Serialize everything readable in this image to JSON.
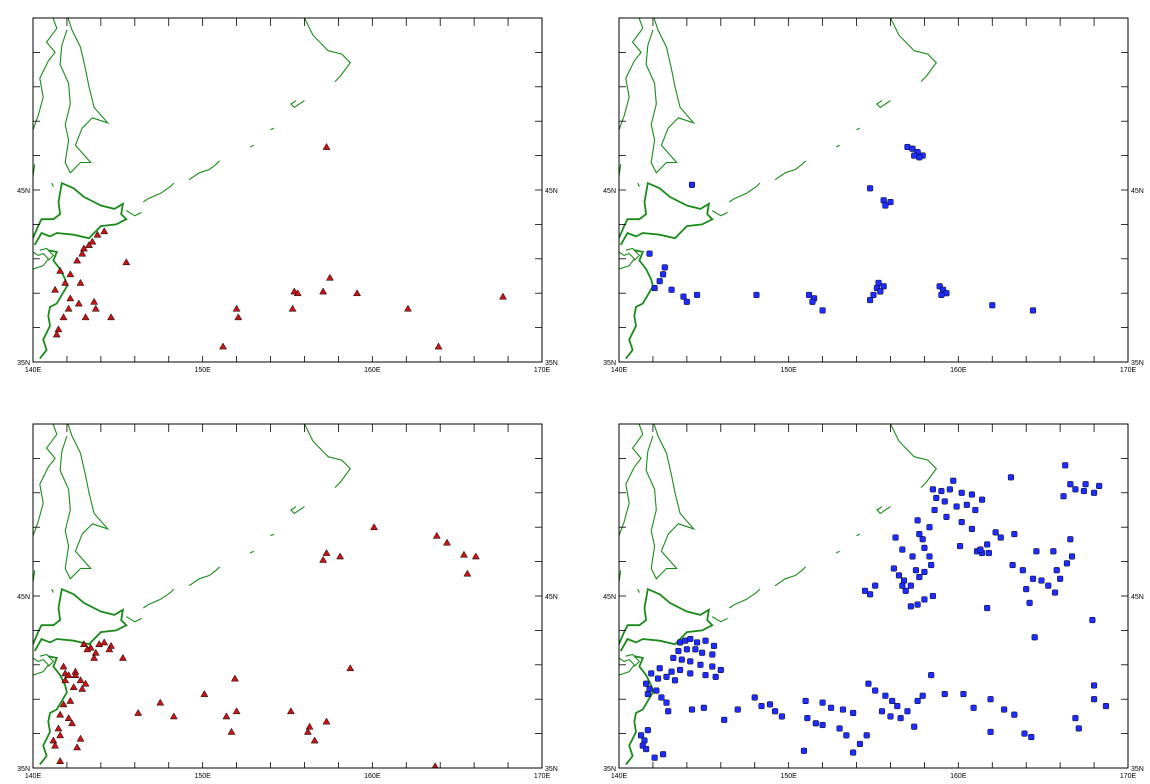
{
  "axes": {
    "x_ticks": [
      {
        "value": 140,
        "label": "140E"
      },
      {
        "value": 150,
        "label": "150E"
      },
      {
        "value": 160,
        "label": "160E"
      },
      {
        "value": 170,
        "label": "170E"
      }
    ],
    "y_ticks": [
      {
        "value": 35,
        "label": "35N"
      },
      {
        "value": 45,
        "label": "45N"
      }
    ],
    "xlim": [
      140,
      170
    ],
    "ylim": [
      35,
      55
    ]
  },
  "colors": {
    "coastline": "#1a8a1a",
    "triangle_marker": "#c81414",
    "square_marker": "#1e2cff",
    "frame": "#000000"
  },
  "panels": [
    {
      "id": "top-left",
      "marker": "triangle",
      "points": [
        [
          157.3,
          47.5
        ],
        [
          143.8,
          42.4
        ],
        [
          143.5,
          42.0
        ],
        [
          143.3,
          41.8
        ],
        [
          143.0,
          41.6
        ],
        [
          142.9,
          41.3
        ],
        [
          142.6,
          40.9
        ],
        [
          144.2,
          42.6
        ],
        [
          145.5,
          40.8
        ],
        [
          141.6,
          40.3
        ],
        [
          142.2,
          40.1
        ],
        [
          141.9,
          39.6
        ],
        [
          141.3,
          39.2
        ],
        [
          142.8,
          39.6
        ],
        [
          142.2,
          38.7
        ],
        [
          142.7,
          38.4
        ],
        [
          142.1,
          38.1
        ],
        [
          141.8,
          37.6
        ],
        [
          143.6,
          38.5
        ],
        [
          143.7,
          38.1
        ],
        [
          144.6,
          37.6
        ],
        [
          143.1,
          37.6
        ],
        [
          141.5,
          36.9
        ],
        [
          141.4,
          36.6
        ],
        [
          157.5,
          39.9
        ],
        [
          155.4,
          39.1
        ],
        [
          155.6,
          39.0
        ],
        [
          157.1,
          39.1
        ],
        [
          159.1,
          39.0
        ],
        [
          167.7,
          38.8
        ],
        [
          152.0,
          38.1
        ],
        [
          152.1,
          37.6
        ],
        [
          155.3,
          38.1
        ],
        [
          162.1,
          38.1
        ],
        [
          151.2,
          35.9
        ],
        [
          163.9,
          35.9
        ]
      ]
    },
    {
      "id": "top-right",
      "marker": "square",
      "points": [
        [
          157.0,
          47.5
        ],
        [
          157.3,
          47.4
        ],
        [
          157.6,
          47.2
        ],
        [
          157.9,
          47.0
        ],
        [
          157.7,
          46.9
        ],
        [
          157.4,
          47.0
        ],
        [
          154.8,
          45.1
        ],
        [
          155.6,
          44.4
        ],
        [
          156.0,
          44.3
        ],
        [
          155.7,
          44.1
        ],
        [
          144.3,
          45.3
        ],
        [
          141.8,
          41.3
        ],
        [
          142.7,
          40.5
        ],
        [
          142.6,
          40.1
        ],
        [
          142.4,
          39.7
        ],
        [
          142.1,
          39.3
        ],
        [
          143.1,
          39.2
        ],
        [
          144.6,
          38.9
        ],
        [
          143.8,
          38.8
        ],
        [
          144.0,
          38.5
        ],
        [
          148.1,
          38.9
        ],
        [
          151.2,
          38.9
        ],
        [
          151.5,
          38.7
        ],
        [
          151.4,
          38.5
        ],
        [
          152.0,
          38.0
        ],
        [
          155.3,
          39.6
        ],
        [
          155.6,
          39.4
        ],
        [
          155.2,
          39.3
        ],
        [
          155.4,
          39.1
        ],
        [
          155.0,
          38.9
        ],
        [
          154.8,
          38.6
        ],
        [
          158.9,
          39.4
        ],
        [
          159.1,
          39.2
        ],
        [
          159.3,
          39.0
        ],
        [
          159.0,
          38.9
        ],
        [
          162.0,
          38.3
        ],
        [
          164.4,
          38.0
        ]
      ]
    },
    {
      "id": "bottom-left",
      "marker": "triangle",
      "points": [
        [
          160.1,
          49.0
        ],
        [
          163.8,
          48.5
        ],
        [
          164.4,
          48.1
        ],
        [
          165.4,
          47.4
        ],
        [
          166.1,
          47.3
        ],
        [
          157.3,
          47.5
        ],
        [
          158.1,
          47.3
        ],
        [
          157.1,
          47.1
        ],
        [
          165.6,
          46.3
        ],
        [
          143.0,
          42.2
        ],
        [
          143.4,
          42.0
        ],
        [
          143.9,
          42.2
        ],
        [
          144.2,
          42.3
        ],
        [
          144.6,
          42.1
        ],
        [
          143.2,
          41.9
        ],
        [
          143.7,
          41.7
        ],
        [
          144.5,
          41.9
        ],
        [
          143.6,
          41.4
        ],
        [
          145.3,
          41.4
        ],
        [
          141.8,
          40.9
        ],
        [
          141.9,
          40.5
        ],
        [
          141.9,
          40.1
        ],
        [
          142.1,
          40.4
        ],
        [
          142.5,
          40.6
        ],
        [
          142.5,
          40.4
        ],
        [
          142.8,
          40.1
        ],
        [
          143.1,
          39.9
        ],
        [
          142.9,
          39.6
        ],
        [
          142.4,
          39.7
        ],
        [
          142.2,
          38.9
        ],
        [
          141.8,
          38.7
        ],
        [
          141.6,
          38.1
        ],
        [
          142.1,
          37.9
        ],
        [
          142.3,
          37.6
        ],
        [
          141.5,
          37.3
        ],
        [
          141.6,
          36.9
        ],
        [
          141.2,
          36.6
        ],
        [
          141.3,
          36.3
        ],
        [
          141.6,
          35.4
        ],
        [
          142.8,
          36.7
        ],
        [
          142.6,
          36.2
        ],
        [
          151.9,
          40.2
        ],
        [
          150.1,
          39.3
        ],
        [
          152.0,
          38.3
        ],
        [
          151.4,
          38.0
        ],
        [
          151.7,
          37.1
        ],
        [
          147.5,
          38.8
        ],
        [
          148.3,
          38.0
        ],
        [
          146.2,
          38.2
        ],
        [
          155.2,
          38.3
        ],
        [
          156.3,
          37.4
        ],
        [
          156.2,
          37.1
        ],
        [
          156.6,
          36.6
        ],
        [
          157.3,
          37.7
        ],
        [
          158.7,
          40.8
        ],
        [
          163.7,
          35.1
        ]
      ]
    },
    {
      "id": "bottom-right",
      "marker": "square",
      "points": [
        [
          166.3,
          52.6
        ],
        [
          167.5,
          51.5
        ],
        [
          168.3,
          51.4
        ],
        [
          166.6,
          51.5
        ],
        [
          166.9,
          51.2
        ],
        [
          167.4,
          51.1
        ],
        [
          168.0,
          51.0
        ],
        [
          166.2,
          50.8
        ],
        [
          163.1,
          51.9
        ],
        [
          159.7,
          51.7
        ],
        [
          158.5,
          51.2
        ],
        [
          159.0,
          51.1
        ],
        [
          159.5,
          51.2
        ],
        [
          160.2,
          51.0
        ],
        [
          160.8,
          50.9
        ],
        [
          161.4,
          50.6
        ],
        [
          158.7,
          50.7
        ],
        [
          159.2,
          50.5
        ],
        [
          159.9,
          50.2
        ],
        [
          160.5,
          50.3
        ],
        [
          161.0,
          50.0
        ],
        [
          158.6,
          50.0
        ],
        [
          159.3,
          49.6
        ],
        [
          160.2,
          49.3
        ],
        [
          160.8,
          48.9
        ],
        [
          157.6,
          49.4
        ],
        [
          158.3,
          49.0
        ],
        [
          157.7,
          48.6
        ],
        [
          157.9,
          48.3
        ],
        [
          162.2,
          48.7
        ],
        [
          162.5,
          48.4
        ],
        [
          163.3,
          48.6
        ],
        [
          161.7,
          48.0
        ],
        [
          161.1,
          47.6
        ],
        [
          161.4,
          47.5
        ],
        [
          161.8,
          47.5
        ],
        [
          160.1,
          47.9
        ],
        [
          161.3,
          47.7
        ],
        [
          166.6,
          48.3
        ],
        [
          164.6,
          47.6
        ],
        [
          165.6,
          47.6
        ],
        [
          166.7,
          47.3
        ],
        [
          166.4,
          46.9
        ],
        [
          165.8,
          46.5
        ],
        [
          166.0,
          46.0
        ],
        [
          164.9,
          45.9
        ],
        [
          164.4,
          46.0
        ],
        [
          163.8,
          46.5
        ],
        [
          163.2,
          46.8
        ],
        [
          164.0,
          45.4
        ],
        [
          165.3,
          45.6
        ],
        [
          165.7,
          45.2
        ],
        [
          164.2,
          44.6
        ],
        [
          156.3,
          48.4
        ],
        [
          156.7,
          47.7
        ],
        [
          158.0,
          47.8
        ],
        [
          158.3,
          47.3
        ],
        [
          158.4,
          46.8
        ],
        [
          158.0,
          46.4
        ],
        [
          157.7,
          46.1
        ],
        [
          157.5,
          46.5
        ],
        [
          157.3,
          47.3
        ],
        [
          156.2,
          46.6
        ],
        [
          156.5,
          46.2
        ],
        [
          156.8,
          45.9
        ],
        [
          157.2,
          45.6
        ],
        [
          156.9,
          45.3
        ],
        [
          156.7,
          45.6
        ],
        [
          158.5,
          45.0
        ],
        [
          158.0,
          44.8
        ],
        [
          157.2,
          44.4
        ],
        [
          157.6,
          44.5
        ],
        [
          155.1,
          45.6
        ],
        [
          154.5,
          45.3
        ],
        [
          154.8,
          45.1
        ],
        [
          161.7,
          44.3
        ],
        [
          167.9,
          43.6
        ],
        [
          164.5,
          42.6
        ],
        [
          143.6,
          42.3
        ],
        [
          143.9,
          42.4
        ],
        [
          144.2,
          42.5
        ],
        [
          144.6,
          42.3
        ],
        [
          145.1,
          42.4
        ],
        [
          145.6,
          42.1
        ],
        [
          143.5,
          41.8
        ],
        [
          144.0,
          41.9
        ],
        [
          144.5,
          41.9
        ],
        [
          144.9,
          41.7
        ],
        [
          145.5,
          41.6
        ],
        [
          143.2,
          41.4
        ],
        [
          143.7,
          41.3
        ],
        [
          144.2,
          41.2
        ],
        [
          144.8,
          41.0
        ],
        [
          145.5,
          40.9
        ],
        [
          146.0,
          40.7
        ],
        [
          143.1,
          40.6
        ],
        [
          143.6,
          40.7
        ],
        [
          144.2,
          40.5
        ],
        [
          145.1,
          40.4
        ],
        [
          145.7,
          40.3
        ],
        [
          142.4,
          40.8
        ],
        [
          141.9,
          40.5
        ],
        [
          142.3,
          40.2
        ],
        [
          142.8,
          40.3
        ],
        [
          143.3,
          40.1
        ],
        [
          141.6,
          39.9
        ],
        [
          141.8,
          39.6
        ],
        [
          141.7,
          39.3
        ],
        [
          142.2,
          39.5
        ],
        [
          142.5,
          39.1
        ],
        [
          142.8,
          38.8
        ],
        [
          142.9,
          38.3
        ],
        [
          144.3,
          38.4
        ],
        [
          145.0,
          38.5
        ],
        [
          146.2,
          37.8
        ],
        [
          147.0,
          38.4
        ],
        [
          148.0,
          39.1
        ],
        [
          148.4,
          38.6
        ],
        [
          148.9,
          38.7
        ],
        [
          149.2,
          38.3
        ],
        [
          149.6,
          38.0
        ],
        [
          151.0,
          38.9
        ],
        [
          152.0,
          38.8
        ],
        [
          152.5,
          38.5
        ],
        [
          151.1,
          37.9
        ],
        [
          151.6,
          37.6
        ],
        [
          152.0,
          37.5
        ],
        [
          153.2,
          38.4
        ],
        [
          153.8,
          38.2
        ],
        [
          153.0,
          37.3
        ],
        [
          153.4,
          36.9
        ],
        [
          154.2,
          36.4
        ],
        [
          154.6,
          36.9
        ],
        [
          150.9,
          36.0
        ],
        [
          153.8,
          35.9
        ],
        [
          154.7,
          39.9
        ],
        [
          155.1,
          39.5
        ],
        [
          155.7,
          39.2
        ],
        [
          156.1,
          38.9
        ],
        [
          156.4,
          38.6
        ],
        [
          155.5,
          38.3
        ],
        [
          156.0,
          38.0
        ],
        [
          156.6,
          37.9
        ],
        [
          157.0,
          38.3
        ],
        [
          157.6,
          38.9
        ],
        [
          157.9,
          39.2
        ],
        [
          158.4,
          40.4
        ],
        [
          159.2,
          39.3
        ],
        [
          160.3,
          39.3
        ],
        [
          160.9,
          38.5
        ],
        [
          161.9,
          39.0
        ],
        [
          162.7,
          38.4
        ],
        [
          163.3,
          38.1
        ],
        [
          157.4,
          37.4
        ],
        [
          161.9,
          37.1
        ],
        [
          163.9,
          37.0
        ],
        [
          164.3,
          36.8
        ],
        [
          166.9,
          37.9
        ],
        [
          167.1,
          37.3
        ],
        [
          168.0,
          39.0
        ],
        [
          168.7,
          38.6
        ],
        [
          168.0,
          39.8
        ],
        [
          141.3,
          36.9
        ],
        [
          141.5,
          36.6
        ],
        [
          141.4,
          36.3
        ],
        [
          141.6,
          36.1
        ],
        [
          141.7,
          37.2
        ],
        [
          142.6,
          35.8
        ],
        [
          142.1,
          35.6
        ]
      ]
    }
  ]
}
